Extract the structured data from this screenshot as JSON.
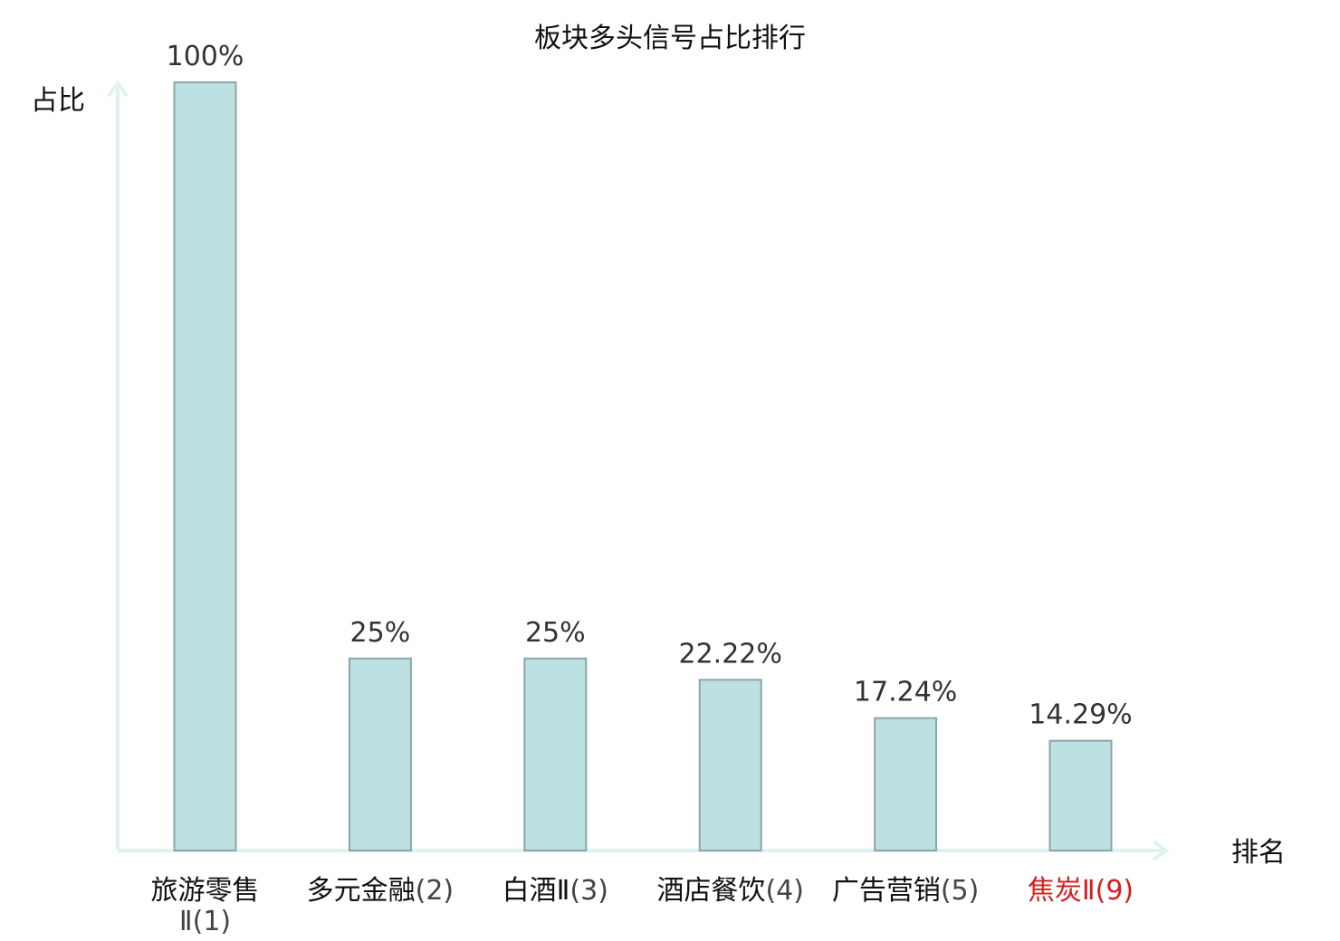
{
  "chart_data": {
    "type": "bar",
    "title": "板块多头信号占比排行",
    "ylabel": "占比",
    "xlabel": "排名",
    "ylim": [
      0,
      100
    ],
    "grid": false,
    "unit": "%",
    "categories": [
      {
        "name": "旅游零售Ⅱ",
        "rank": "(1)",
        "highlight": false
      },
      {
        "name": "多元金融",
        "rank": "(2)",
        "highlight": false
      },
      {
        "name": "白酒Ⅱ",
        "rank": "(3)",
        "highlight": false
      },
      {
        "name": "酒店餐饮",
        "rank": "(4)",
        "highlight": false
      },
      {
        "name": "广告营销",
        "rank": "(5)",
        "highlight": false
      },
      {
        "name": "焦炭Ⅱ",
        "rank": "(9)",
        "highlight": true
      }
    ],
    "values": [
      100,
      25,
      25,
      22.22,
      17.24,
      14.29
    ],
    "value_labels": [
      "100%",
      "25%",
      "25%",
      "22.22%",
      "17.24%",
      "14.29%"
    ],
    "colors": {
      "bar_fill": "#bde0e3",
      "bar_stroke": "#8aa6a9",
      "axis": "#e0f2ef",
      "highlight": "#d42020"
    }
  }
}
